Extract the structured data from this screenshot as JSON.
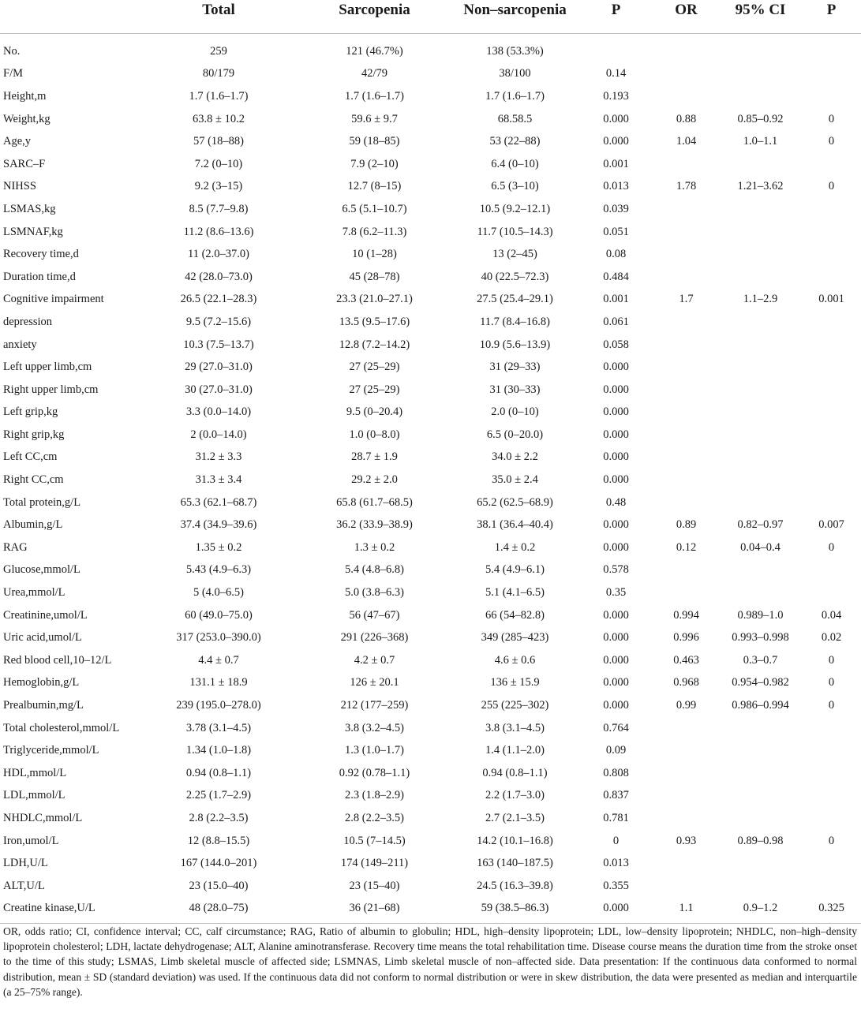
{
  "table": {
    "columns": [
      "",
      "Total",
      "Sarcopenia",
      "Non–sarcopenia",
      "P",
      "OR",
      "95% CI",
      "P"
    ],
    "rows": [
      [
        "No.",
        "259",
        "121 (46.7%)",
        "138 (53.3%)",
        "",
        "",
        "",
        ""
      ],
      [
        "F/M",
        "80/179",
        "42/79",
        "38/100",
        "0.14",
        "",
        "",
        ""
      ],
      [
        "Height,m",
        "1.7 (1.6–1.7)",
        "1.7 (1.6–1.7)",
        "1.7 (1.6–1.7)",
        "0.193",
        "",
        "",
        ""
      ],
      [
        "Weight,kg",
        "63.8 ± 10.2",
        "59.6 ± 9.7",
        "68.58.5",
        "0.000",
        "0.88",
        "0.85–0.92",
        "0"
      ],
      [
        "Age,y",
        "57 (18–88)",
        "59 (18–85)",
        "53 (22–88)",
        "0.000",
        "1.04",
        "1.0–1.1",
        "0"
      ],
      [
        "SARC–F",
        "7.2 (0–10)",
        "7.9 (2–10)",
        "6.4 (0–10)",
        "0.001",
        "",
        "",
        ""
      ],
      [
        "NIHSS",
        "9.2 (3–15)",
        "12.7 (8–15)",
        "6.5 (3–10)",
        "0.013",
        "1.78",
        "1.21–3.62",
        "0"
      ],
      [
        "LSMAS,kg",
        "8.5 (7.7–9.8)",
        "6.5 (5.1–10.7)",
        "10.5 (9.2–12.1)",
        "0.039",
        "",
        "",
        ""
      ],
      [
        "LSMNAF,kg",
        "11.2 (8.6–13.6)",
        "7.8 (6.2–11.3)",
        "11.7 (10.5–14.3)",
        "0.051",
        "",
        "",
        ""
      ],
      [
        "Recovery time,d",
        "11 (2.0–37.0)",
        "10 (1–28)",
        "13 (2–45)",
        "0.08",
        "",
        "",
        ""
      ],
      [
        "Duration time,d",
        "42 (28.0–73.0)",
        "45 (28–78)",
        "40 (22.5–72.3)",
        "0.484",
        "",
        "",
        ""
      ],
      [
        "Cognitive impairment",
        "26.5 (22.1–28.3)",
        "23.3 (21.0–27.1)",
        "27.5 (25.4–29.1)",
        "0.001",
        "1.7",
        "1.1–2.9",
        "0.001"
      ],
      [
        "depression",
        "9.5 (7.2–15.6)",
        "13.5 (9.5–17.6)",
        "11.7 (8.4–16.8)",
        "0.061",
        "",
        "",
        ""
      ],
      [
        "anxiety",
        "10.3 (7.5–13.7)",
        "12.8 (7.2–14.2)",
        "10.9 (5.6–13.9)",
        "0.058",
        "",
        "",
        ""
      ],
      [
        "Left upper limb,cm",
        "29 (27.0–31.0)",
        "27 (25–29)",
        "31 (29–33)",
        "0.000",
        "",
        "",
        ""
      ],
      [
        "Right upper limb,cm",
        "30 (27.0–31.0)",
        "27 (25–29)",
        "31 (30–33)",
        "0.000",
        "",
        "",
        ""
      ],
      [
        "Left grip,kg",
        "3.3 (0.0–14.0)",
        "9.5 (0–20.4)",
        "2.0 (0–10)",
        "0.000",
        "",
        "",
        ""
      ],
      [
        "Right grip,kg",
        "2 (0.0–14.0)",
        "1.0 (0–8.0)",
        "6.5 (0–20.0)",
        "0.000",
        "",
        "",
        ""
      ],
      [
        "Left CC,cm",
        "31.2 ± 3.3",
        "28.7 ± 1.9",
        "34.0 ± 2.2",
        "0.000",
        "",
        "",
        ""
      ],
      [
        "Right CC,cm",
        "31.3 ± 3.4",
        "29.2 ± 2.0",
        "35.0 ± 2.4",
        "0.000",
        "",
        "",
        ""
      ],
      [
        "Total protein,g/L",
        "65.3 (62.1–68.7)",
        "65.8 (61.7–68.5)",
        "65.2 (62.5–68.9)",
        "0.48",
        "",
        "",
        ""
      ],
      [
        "Albumin,g/L",
        "37.4 (34.9–39.6)",
        "36.2 (33.9–38.9)",
        "38.1 (36.4–40.4)",
        "0.000",
        "0.89",
        "0.82–0.97",
        "0.007"
      ],
      [
        "RAG",
        "1.35 ± 0.2",
        "1.3 ± 0.2",
        "1.4 ± 0.2",
        "0.000",
        "0.12",
        "0.04–0.4",
        "0"
      ],
      [
        "Glucose,mmol/L",
        "5.43 (4.9–6.3)",
        "5.4 (4.8–6.8)",
        "5.4 (4.9–6.1)",
        "0.578",
        "",
        "",
        ""
      ],
      [
        "Urea,mmol/L",
        "5 (4.0–6.5)",
        "5.0 (3.8–6.3)",
        "5.1 (4.1–6.5)",
        "0.35",
        "",
        "",
        ""
      ],
      [
        "Creatinine,umol/L",
        "60 (49.0–75.0)",
        "56 (47–67)",
        "66 (54–82.8)",
        "0.000",
        "0.994",
        "0.989–1.0",
        "0.04"
      ],
      [
        "Uric acid,umol/L",
        "317 (253.0–390.0)",
        "291 (226–368)",
        "349 (285–423)",
        "0.000",
        "0.996",
        "0.993–0.998",
        "0.02"
      ],
      [
        "Red blood cell,10–12/L",
        "4.4 ± 0.7",
        "4.2 ± 0.7",
        "4.6 ± 0.6",
        "0.000",
        "0.463",
        "0.3–0.7",
        "0"
      ],
      [
        "Hemoglobin,g/L",
        "131.1 ± 18.9",
        "126 ± 20.1",
        "136 ± 15.9",
        "0.000",
        "0.968",
        "0.954–0.982",
        "0"
      ],
      [
        "Prealbumin,mg/L",
        "239 (195.0–278.0)",
        "212 (177–259)",
        "255 (225–302)",
        "0.000",
        "0.99",
        "0.986–0.994",
        "0"
      ],
      [
        "Total cholesterol,mmol/L",
        "3.78 (3.1–4.5)",
        "3.8 (3.2–4.5)",
        "3.8 (3.1–4.5)",
        "0.764",
        "",
        "",
        ""
      ],
      [
        "Triglyceride,mmol/L",
        "1.34 (1.0–1.8)",
        "1.3 (1.0–1.7)",
        "1.4 (1.1–2.0)",
        "0.09",
        "",
        "",
        ""
      ],
      [
        "HDL,mmol/L",
        "0.94 (0.8–1.1)",
        "0.92 (0.78–1.1)",
        "0.94 (0.8–1.1)",
        "0.808",
        "",
        "",
        ""
      ],
      [
        "LDL,mmol/L",
        "2.25 (1.7–2.9)",
        "2.3 (1.8–2.9)",
        "2.2 (1.7–3.0)",
        "0.837",
        "",
        "",
        ""
      ],
      [
        "NHDLC,mmol/L",
        "2.8 (2.2–3.5)",
        "2.8 (2.2–3.5)",
        "2.7 (2.1–3.5)",
        "0.781",
        "",
        "",
        ""
      ],
      [
        "Iron,umol/L",
        "12 (8.8–15.5)",
        "10.5 (7–14.5)",
        "14.2 (10.1–16.8)",
        "0",
        "0.93",
        "0.89–0.98",
        "0"
      ],
      [
        "LDH,U/L",
        "167 (144.0–201)",
        "174 (149–211)",
        "163 (140–187.5)",
        "0.013",
        "",
        "",
        ""
      ],
      [
        "ALT,U/L",
        "23 (15.0–40)",
        "23 (15–40)",
        "24.5 (16.3–39.8)",
        "0.355",
        "",
        "",
        ""
      ],
      [
        "Creatine kinase,U/L",
        "48 (28.0–75)",
        "36 (21–68)",
        "59 (38.5–86.3)",
        "0.000",
        "1.1",
        "0.9–1.2",
        "0.325"
      ]
    ]
  },
  "footnote": "OR, odds ratio; CI, confidence interval; CC, calf circumstance; RAG, Ratio of albumin to globulin; HDL, high–density lipoprotein; LDL, low–density lipoprotein; NHDLC, non–high–density lipoprotein cholesterol; LDH, lactate dehydrogenase; ALT, Alanine aminotransferase. Recovery time means the total rehabilitation time. Disease course means the duration time from the stroke onset to the time of this study; LSMAS, Limb skeletal muscle of affected side; LSMNAS, Limb skeletal muscle of non–affected side. Data presentation: If the continuous data conformed to normal distribution, mean ± SD (standard deviation) was used. If the continuous data did not conform to normal distribution or were in skew distribution, the data were presented as median and interquartile (a 25–75% range)."
}
